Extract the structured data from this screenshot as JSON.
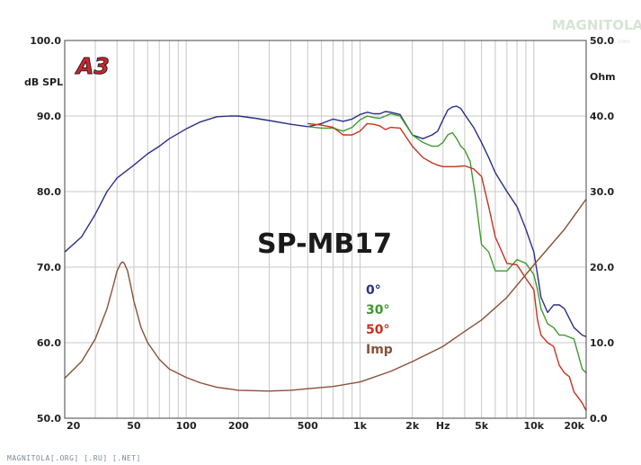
{
  "watermark": {
    "text": "MAGNITOLA",
    "sub": ".com"
  },
  "logo": {
    "text": "A3"
  },
  "footer": "MAGNITOLA[.ORG] [.RU] [.NET]",
  "colors": {
    "s0": "#2b2f86",
    "s30": "#3e9a2c",
    "s50": "#c8321e",
    "imp": "#8a5038",
    "grid": "#c8c8c8",
    "logo_red": "#d5232c"
  },
  "chart_data": {
    "type": "line",
    "title": "SP-MB17",
    "xlabel": "Hz",
    "ylabel": "dB SPL",
    "y2label": "Ohm",
    "xscale": "log",
    "xlim": [
      20,
      20000
    ],
    "ylim": [
      50,
      100
    ],
    "y2lim": [
      0,
      50
    ],
    "grid": true,
    "legend_position": "center-right",
    "xticks": [
      {
        "v": 20,
        "label": "20"
      },
      {
        "v": 50,
        "label": "50"
      },
      {
        "v": 100,
        "label": "100"
      },
      {
        "v": 200,
        "label": "200"
      },
      {
        "v": 500,
        "label": "500"
      },
      {
        "v": 1000,
        "label": "1k"
      },
      {
        "v": 2000,
        "label": "2k"
      },
      {
        "v": 5000,
        "label": "5k"
      },
      {
        "v": 10000,
        "label": "10k"
      },
      {
        "v": 20000,
        "label": "20k"
      }
    ],
    "yticks": [
      "100.0",
      "90.0",
      "80.0",
      "70.0",
      "60.0",
      "50.0"
    ],
    "y2ticks": [
      "50.0",
      "40.0",
      "30.0",
      "20.0",
      "10.0",
      "0.0"
    ],
    "series": [
      {
        "name": "0°",
        "axis": "left",
        "color": "#2b2f86",
        "x": [
          20,
          25,
          30,
          35,
          40,
          50,
          60,
          70,
          80,
          100,
          120,
          150,
          180,
          200,
          250,
          300,
          400,
          500,
          600,
          700,
          800,
          900,
          1000,
          1100,
          1200,
          1300,
          1400,
          1500,
          1700,
          2000,
          2300,
          2600,
          2800,
          3000,
          3200,
          3400,
          3600,
          3800,
          4000,
          4500,
          5000,
          5500,
          6000,
          7000,
          8000,
          9000,
          10000,
          10500,
          11000,
          12000,
          13000,
          14000,
          15000,
          17000,
          19000,
          20000
        ],
        "y": [
          72,
          74,
          77,
          80,
          81.8,
          83.5,
          85,
          86,
          87,
          88.3,
          89.2,
          89.9,
          90,
          90,
          89.7,
          89.4,
          88.9,
          88.6,
          89,
          89.6,
          89.3,
          89.6,
          90.2,
          90.5,
          90.3,
          90.3,
          90.6,
          90.5,
          90.2,
          87.5,
          87,
          87.5,
          88,
          89.5,
          90.8,
          91.2,
          91.3,
          91,
          90.2,
          88.5,
          86.5,
          84.5,
          82.5,
          80,
          78,
          75,
          72,
          69,
          66,
          64,
          65,
          65,
          64.5,
          62,
          61,
          60.8
        ]
      },
      {
        "name": "30°",
        "axis": "left",
        "color": "#3e9a2c",
        "x": [
          500,
          600,
          700,
          800,
          900,
          1000,
          1100,
          1200,
          1300,
          1400,
          1500,
          1700,
          2000,
          2300,
          2600,
          2800,
          3000,
          3200,
          3400,
          3600,
          3800,
          4000,
          4300,
          4600,
          5000,
          5500,
          6000,
          7000,
          8000,
          9000,
          10000,
          10500,
          11000,
          12000,
          13000,
          14000,
          15000,
          17000,
          19000,
          20000
        ],
        "y": [
          88.6,
          88.4,
          88.4,
          88,
          88.5,
          89.5,
          90,
          89.8,
          89.7,
          90,
          90.3,
          90,
          87.5,
          86.5,
          86,
          86,
          86.5,
          87.5,
          87.8,
          87,
          86,
          85.5,
          84,
          79.5,
          73,
          72,
          69.5,
          69.5,
          71,
          70.5,
          69,
          67,
          64.5,
          62.5,
          62,
          61,
          61,
          60.5,
          56.5,
          56
        ]
      },
      {
        "name": "50°",
        "axis": "left",
        "color": "#c8321e",
        "x": [
          500,
          600,
          700,
          800,
          900,
          1000,
          1100,
          1200,
          1300,
          1400,
          1500,
          1700,
          2000,
          2300,
          2600,
          2800,
          3000,
          3500,
          4000,
          4500,
          5000,
          5500,
          6000,
          7000,
          8000,
          9000,
          10000,
          10500,
          11000,
          12000,
          13000,
          14000,
          15000,
          16000,
          17000,
          19000,
          20000
        ],
        "y": [
          89,
          88.8,
          88.5,
          87.5,
          87.5,
          88,
          89,
          88.9,
          88.7,
          88.2,
          88.5,
          88.4,
          86,
          84.5,
          83.8,
          83.5,
          83.3,
          83.3,
          83.4,
          83,
          82,
          78,
          74,
          70.5,
          70.3,
          68.5,
          67,
          63,
          61,
          60,
          59.5,
          57,
          56,
          55.5,
          53.5,
          52,
          51
        ]
      },
      {
        "name": "Imp",
        "axis": "right",
        "color": "#8a5038",
        "x": [
          20,
          25,
          30,
          35,
          38,
          40,
          42,
          43,
          44,
          46,
          48,
          50,
          55,
          60,
          70,
          80,
          100,
          120,
          150,
          200,
          300,
          400,
          500,
          700,
          1000,
          1500,
          2000,
          3000,
          4000,
          5000,
          7000,
          10000,
          15000,
          20000
        ],
        "y": [
          5.3,
          7.5,
          10.5,
          14.5,
          17.5,
          19.5,
          20.5,
          20.7,
          20.5,
          19.5,
          17.5,
          15.5,
          12,
          10,
          7.8,
          6.5,
          5.4,
          4.7,
          4.1,
          3.7,
          3.6,
          3.7,
          3.9,
          4.2,
          4.8,
          6.2,
          7.5,
          9.5,
          11.5,
          13,
          16,
          20.3,
          25,
          29
        ]
      }
    ]
  }
}
